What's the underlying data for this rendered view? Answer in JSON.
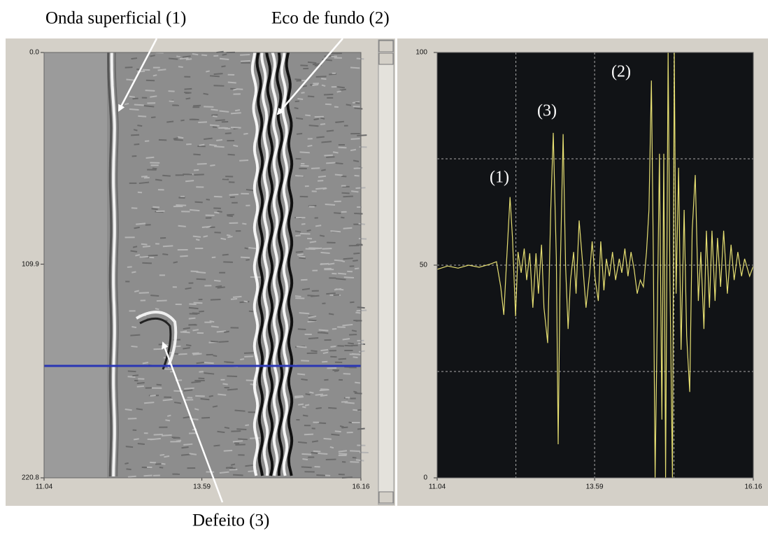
{
  "chart_data": [
    {
      "type": "bscan",
      "xlim": [
        11.04,
        16.16
      ],
      "xticks": [
        11.04,
        13.59,
        16.16
      ],
      "ylim": [
        0,
        220.8
      ],
      "y_inverted": true,
      "yticks": [
        {
          "value": 0,
          "label": "0.0"
        },
        109.9,
        220.8
      ],
      "cursor": {
        "value": 162.7,
        "color": "#2a36b4"
      },
      "annotations": [
        "Onda superficial (1)",
        "Eco de fundo (2)",
        "Defeito (3)"
      ]
    },
    {
      "type": "line",
      "xlim": [
        11.04,
        16.16
      ],
      "xticks": [
        11.04,
        13.59,
        16.16
      ],
      "ylim": [
        0,
        100
      ],
      "yticks": [
        0,
        50,
        100
      ],
      "grid": true,
      "color": "#e6df72",
      "annotations": [
        "(1)",
        "(3)",
        "(2)"
      ],
      "x": [
        11.04,
        11.21,
        11.38,
        11.55,
        11.72,
        11.89,
        12.0,
        12.07,
        12.12,
        12.16,
        12.22,
        12.26,
        12.31,
        12.35,
        12.4,
        12.45,
        12.49,
        12.54,
        12.59,
        12.64,
        12.68,
        12.73,
        12.77,
        12.83,
        12.88,
        12.92,
        12.97,
        13.0,
        13.03,
        13.08,
        13.12,
        13.16,
        13.2,
        13.25,
        13.29,
        13.34,
        13.4,
        13.45,
        13.51,
        13.55,
        13.6,
        13.65,
        13.69,
        13.74,
        13.78,
        13.83,
        13.88,
        13.93,
        13.99,
        14.03,
        14.08,
        14.13,
        14.18,
        14.23,
        14.28,
        14.33,
        14.38,
        14.43,
        14.47,
        14.51,
        14.54,
        14.57,
        14.61,
        14.64,
        14.68,
        14.71,
        14.74,
        14.78,
        14.81,
        14.85,
        14.88,
        14.91,
        14.95,
        14.99,
        15.04,
        15.08,
        15.13,
        15.17,
        15.22,
        15.27,
        15.31,
        15.36,
        15.4,
        15.45,
        15.49,
        15.54,
        15.58,
        15.63,
        15.68,
        15.74,
        15.8,
        15.85,
        15.91,
        15.97,
        16.02,
        16.1,
        16.16
      ],
      "values": [
        49.0,
        49.8,
        49.3,
        50.0,
        49.5,
        50.2,
        50.8,
        44.9,
        38.3,
        49.8,
        66.0,
        56.4,
        38.0,
        53.1,
        48.2,
        53.9,
        46.5,
        52.8,
        40.0,
        52.8,
        43.3,
        54.8,
        40.0,
        31.7,
        63.0,
        81.1,
        51.5,
        7.9,
        46.5,
        80.8,
        49.8,
        35.0,
        46.5,
        53.1,
        43.3,
        60.5,
        49.8,
        40.0,
        48.2,
        55.6,
        46.5,
        41.6,
        55.6,
        44.1,
        51.5,
        47.4,
        53.1,
        46.5,
        51.5,
        48.2,
        53.9,
        47.4,
        53.1,
        49.0,
        43.3,
        46.5,
        44.9,
        53.1,
        63.0,
        93.4,
        53.1,
        0,
        43.3,
        76.2,
        13.7,
        76.2,
        0,
        100,
        46.5,
        0,
        100,
        43.3,
        72.9,
        30.1,
        63.0,
        33.4,
        20.2,
        58.1,
        71.2,
        41.6,
        53.1,
        35.0,
        58.1,
        40.0,
        58.1,
        41.6,
        56.4,
        44.9,
        58.1,
        43.3,
        54.8,
        46.5,
        53.1,
        47.4,
        51.5,
        47.4,
        49.8
      ]
    }
  ]
}
